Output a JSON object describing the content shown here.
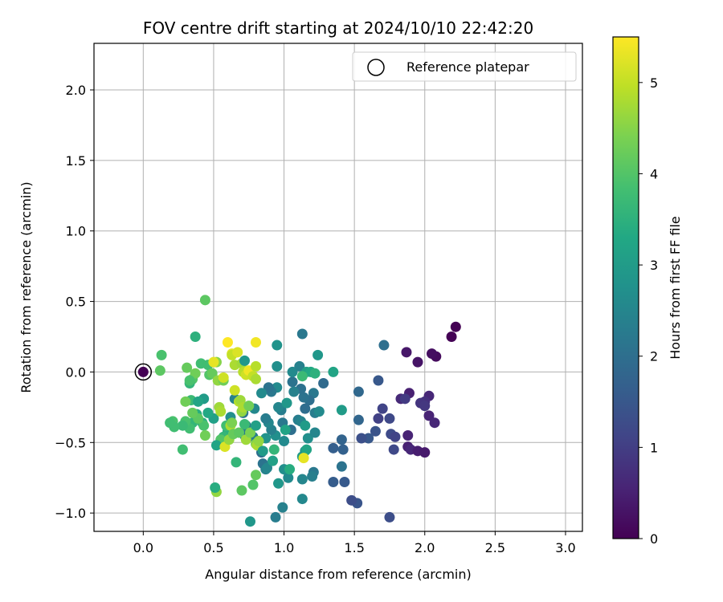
{
  "chart_data": {
    "type": "scatter",
    "title": "FOV centre drift starting at 2024/10/10 22:42:20",
    "xlabel": "Angular distance from reference (arcmin)",
    "ylabel": "Rotation from reference (arcmin)",
    "xlim": [
      -0.35,
      3.12
    ],
    "ylim": [
      -1.13,
      2.33
    ],
    "xticks": [
      0.0,
      0.5,
      1.0,
      1.5,
      2.0,
      2.5,
      3.0
    ],
    "xtick_labels": [
      "0.0",
      "0.5",
      "1.0",
      "1.5",
      "2.0",
      "2.5",
      "3.0"
    ],
    "yticks": [
      -1.0,
      -0.5,
      0.0,
      0.5,
      1.0,
      1.5,
      2.0
    ],
    "ytick_labels": [
      "−1.0",
      "−0.5",
      "0.0",
      "0.5",
      "1.0",
      "1.5",
      "2.0"
    ],
    "grid": true,
    "legend": {
      "placement": "upper-right",
      "entries": [
        "Reference platepar"
      ]
    },
    "colorbar": {
      "label": "Hours from first FF file",
      "range": [
        0,
        5.5
      ],
      "ticks": [
        0,
        1,
        2,
        3,
        4,
        5
      ],
      "tick_labels": [
        "0",
        "1",
        "2",
        "3",
        "4",
        "5"
      ],
      "colormap": "viridis",
      "colormap_stops": [
        "#440154",
        "#482475",
        "#414487",
        "#355f8d",
        "#2a788e",
        "#21918c",
        "#22a884",
        "#44bf70",
        "#7ad151",
        "#bddf26",
        "#fde725"
      ]
    },
    "reference_point": {
      "x": 0.0,
      "y": 0.0,
      "hours": 0.0
    },
    "points": [
      [
        2.22,
        0.32,
        0.0
      ],
      [
        2.19,
        0.25,
        0.02
      ],
      [
        2.08,
        0.11,
        0.15
      ],
      [
        2.05,
        0.13,
        0.2
      ],
      [
        1.87,
        0.14,
        0.35
      ],
      [
        1.95,
        0.07,
        0.3
      ],
      [
        1.83,
        -0.19,
        0.65
      ],
      [
        1.89,
        -0.15,
        0.5
      ],
      [
        2.03,
        -0.17,
        0.6
      ],
      [
        2.0,
        -0.21,
        0.75
      ],
      [
        1.97,
        -0.22,
        0.85
      ],
      [
        2.0,
        -0.24,
        0.9
      ],
      [
        2.03,
        -0.31,
        0.55
      ],
      [
        2.07,
        -0.36,
        0.6
      ],
      [
        1.88,
        -0.45,
        0.55
      ],
      [
        1.88,
        -0.53,
        0.5
      ],
      [
        1.9,
        -0.55,
        0.6
      ],
      [
        1.95,
        -0.56,
        0.45
      ],
      [
        2.0,
        -0.57,
        0.4
      ],
      [
        1.86,
        -0.19,
        0.95
      ],
      [
        1.7,
        -0.26,
        1.1
      ],
      [
        1.75,
        -0.33,
        1.2
      ],
      [
        1.67,
        -0.33,
        1.05
      ],
      [
        1.76,
        -0.44,
        1.25
      ],
      [
        1.78,
        -0.55,
        1.2
      ],
      [
        1.79,
        -0.46,
        1.1
      ],
      [
        1.75,
        -1.03,
        1.3
      ],
      [
        1.65,
        -0.42,
        1.4
      ],
      [
        1.6,
        -0.47,
        1.5
      ],
      [
        1.55,
        -0.47,
        1.35
      ],
      [
        1.52,
        -0.93,
        1.45
      ],
      [
        1.48,
        -0.91,
        1.3
      ],
      [
        1.43,
        -0.78,
        1.55
      ],
      [
        1.35,
        -0.78,
        1.6
      ],
      [
        1.35,
        -0.54,
        1.65
      ],
      [
        1.42,
        -0.55,
        1.7
      ],
      [
        1.41,
        -0.48,
        1.75
      ],
      [
        1.53,
        -0.34,
        1.8
      ],
      [
        1.53,
        -0.14,
        1.85
      ],
      [
        1.67,
        -0.06,
        1.5
      ],
      [
        1.71,
        0.19,
        2.0
      ],
      [
        1.41,
        -0.67,
        2.1
      ],
      [
        1.21,
        -0.71,
        2.2
      ],
      [
        1.2,
        -0.74,
        2.35
      ],
      [
        1.13,
        -0.76,
        2.5
      ],
      [
        1.13,
        -0.9,
        2.55
      ],
      [
        1.03,
        -0.75,
        2.6
      ],
      [
        1.0,
        -0.69,
        2.7
      ],
      [
        0.99,
        -0.96,
        2.4
      ],
      [
        0.96,
        -0.79,
        2.9
      ],
      [
        0.94,
        -1.03,
        2.3
      ],
      [
        1.13,
        -0.6,
        3.0
      ],
      [
        1.15,
        -0.56,
        2.8
      ],
      [
        1.17,
        -0.47,
        2.7
      ],
      [
        1.22,
        -0.43,
        2.5
      ],
      [
        1.28,
        -0.08,
        1.9
      ],
      [
        1.22,
        -0.29,
        2.3
      ],
      [
        1.25,
        -0.28,
        2.6
      ],
      [
        1.21,
        -0.15,
        2.2
      ],
      [
        1.18,
        -0.2,
        2.0
      ],
      [
        1.14,
        -0.18,
        2.1
      ],
      [
        1.15,
        -0.26,
        1.95
      ],
      [
        1.12,
        -0.12,
        2.05
      ],
      [
        1.1,
        -0.34,
        2.3
      ],
      [
        1.12,
        -0.35,
        2.45
      ],
      [
        1.06,
        -0.07,
        2.1
      ],
      [
        1.07,
        -0.14,
        2.4
      ],
      [
        1.06,
        0.0,
        2.6
      ],
      [
        1.05,
        -0.41,
        2.0
      ],
      [
        0.99,
        -0.36,
        2.2
      ],
      [
        0.98,
        -0.27,
        2.3
      ],
      [
        0.96,
        -0.25,
        2.5
      ],
      [
        0.95,
        -0.11,
        2.6
      ],
      [
        0.95,
        0.04,
        2.7
      ],
      [
        0.95,
        0.19,
        2.8
      ],
      [
        1.13,
        0.27,
        2.2
      ],
      [
        1.11,
        0.04,
        2.4
      ],
      [
        1.16,
        0.0,
        3.1
      ],
      [
        1.19,
        0.0,
        3.3
      ],
      [
        1.22,
        -0.01,
        3.5
      ],
      [
        1.24,
        0.12,
        2.9
      ],
      [
        1.35,
        0.0,
        3.2
      ],
      [
        1.41,
        -0.27,
        3.0
      ],
      [
        1.02,
        -0.22,
        2.9
      ],
      [
        1.01,
        -0.41,
        3.2
      ],
      [
        1.0,
        -0.49,
        2.6
      ],
      [
        0.94,
        -0.45,
        2.7
      ],
      [
        0.91,
        -0.41,
        2.4
      ],
      [
        0.89,
        -0.36,
        2.5
      ],
      [
        0.87,
        -0.33,
        2.3
      ],
      [
        0.91,
        -0.14,
        2.2
      ],
      [
        0.89,
        -0.11,
        2.1
      ],
      [
        0.84,
        -0.15,
        2.6
      ],
      [
        0.79,
        -0.26,
        2.55
      ],
      [
        0.78,
        -0.46,
        2.3
      ],
      [
        0.87,
        -0.47,
        2.8
      ],
      [
        0.84,
        -0.57,
        2.0
      ],
      [
        0.85,
        -0.65,
        2.1
      ],
      [
        0.87,
        -0.69,
        2.4
      ],
      [
        0.88,
        -0.68,
        2.5
      ],
      [
        0.92,
        -0.63,
        3.1
      ],
      [
        0.93,
        -0.55,
        3.6
      ],
      [
        0.76,
        -1.06,
        2.9
      ],
      [
        0.65,
        -0.19,
        2.4
      ],
      [
        0.62,
        -0.32,
        2.7
      ],
      [
        0.71,
        -0.29,
        2.1
      ],
      [
        0.72,
        -0.45,
        2.2
      ],
      [
        0.73,
        -0.38,
        2.3
      ],
      [
        0.6,
        -0.42,
        3.5
      ],
      [
        0.59,
        -0.38,
        3.8
      ],
      [
        0.57,
        -0.46,
        3.6
      ],
      [
        0.55,
        -0.48,
        4.0
      ],
      [
        0.52,
        -0.52,
        3.2
      ],
      [
        0.5,
        -0.33,
        3.1
      ],
      [
        0.46,
        -0.29,
        3.3
      ],
      [
        0.43,
        -0.19,
        3.0
      ],
      [
        0.42,
        -0.36,
        3.5
      ],
      [
        0.38,
        -0.3,
        3.4
      ],
      [
        0.34,
        -0.2,
        3.7
      ],
      [
        0.35,
        -0.36,
        3.6
      ],
      [
        0.33,
        -0.4,
        3.8
      ],
      [
        0.3,
        -0.35,
        3.9
      ],
      [
        0.28,
        -0.38,
        3.7
      ],
      [
        0.28,
        -0.55,
        3.8
      ],
      [
        0.21,
        -0.35,
        3.9
      ],
      [
        0.22,
        -0.39,
        3.8
      ],
      [
        0.13,
        0.12,
        3.9
      ],
      [
        0.12,
        0.01,
        4.1
      ],
      [
        0.31,
        0.03,
        4.2
      ],
      [
        0.35,
        -0.05,
        4.0
      ],
      [
        0.37,
        -0.01,
        4.3
      ],
      [
        0.33,
        -0.08,
        3.6
      ],
      [
        0.39,
        -0.21,
        3.2
      ],
      [
        0.41,
        0.06,
        3.8
      ],
      [
        0.37,
        0.25,
        3.5
      ],
      [
        0.44,
        0.51,
        4.1
      ],
      [
        0.46,
        0.05,
        3.8
      ],
      [
        0.47,
        -0.02,
        4.0
      ],
      [
        0.49,
        -0.01,
        4.2
      ],
      [
        0.52,
        0.07,
        4.5
      ],
      [
        0.53,
        -0.06,
        4.6
      ],
      [
        0.54,
        -0.25,
        4.7
      ],
      [
        0.55,
        -0.28,
        4.8
      ],
      [
        0.57,
        -0.06,
        4.3
      ],
      [
        0.58,
        -0.53,
        5.2
      ],
      [
        0.61,
        -0.48,
        4.6
      ],
      [
        0.62,
        -0.38,
        4.8
      ],
      [
        0.63,
        -0.36,
        4.4
      ],
      [
        0.64,
        -0.44,
        4.2
      ],
      [
        0.66,
        -0.64,
        3.6
      ],
      [
        0.68,
        -0.43,
        4.1
      ],
      [
        0.68,
        -0.21,
        4.9
      ],
      [
        0.69,
        -0.2,
        4.7
      ],
      [
        0.7,
        -0.28,
        4.6
      ],
      [
        0.71,
        -0.25,
        4.8
      ],
      [
        0.72,
        -0.37,
        3.7
      ],
      [
        0.73,
        -0.48,
        4.7
      ],
      [
        0.75,
        -0.24,
        4.3
      ],
      [
        0.76,
        -0.43,
        4.4
      ],
      [
        0.78,
        -0.8,
        4.0
      ],
      [
        0.8,
        -0.73,
        4.2
      ],
      [
        0.8,
        -0.51,
        4.5
      ],
      [
        0.81,
        -0.52,
        4.8
      ],
      [
        0.82,
        -0.49,
        4.6
      ],
      [
        0.7,
        -0.84,
        4.1
      ],
      [
        0.52,
        -0.85,
        4.6
      ],
      [
        0.51,
        -0.82,
        3.4
      ],
      [
        0.63,
        0.13,
        5.3
      ],
      [
        0.6,
        0.21,
        5.5
      ],
      [
        0.63,
        0.12,
        5.0
      ],
      [
        0.67,
        0.14,
        5.2
      ],
      [
        0.65,
        0.05,
        4.8
      ],
      [
        0.7,
        0.06,
        4.7
      ],
      [
        0.71,
        0.0,
        4.9
      ],
      [
        0.73,
        -0.02,
        5.1
      ],
      [
        0.75,
        0.01,
        5.4
      ],
      [
        0.78,
        -0.03,
        5.0
      ],
      [
        0.8,
        -0.05,
        4.8
      ],
      [
        0.8,
        0.04,
        4.9
      ],
      [
        0.8,
        0.21,
        5.4
      ],
      [
        0.72,
        0.08,
        2.9
      ],
      [
        0.65,
        -0.13,
        5.1
      ],
      [
        0.57,
        -0.04,
        5.1
      ],
      [
        0.5,
        0.07,
        5.3
      ],
      [
        0.43,
        -0.38,
        3.9
      ],
      [
        0.44,
        -0.45,
        4.3
      ],
      [
        0.39,
        -0.33,
        4.1
      ],
      [
        0.35,
        -0.29,
        4.2
      ],
      [
        0.3,
        -0.21,
        4.3
      ],
      [
        0.33,
        -0.06,
        3.9
      ],
      [
        0.19,
        -0.36,
        3.8
      ],
      [
        1.13,
        -0.03,
        3.7
      ],
      [
        1.15,
        -0.38,
        3.0
      ],
      [
        1.16,
        -0.55,
        3.2
      ],
      [
        1.04,
        -0.69,
        3.4
      ],
      [
        1.14,
        -0.61,
        5.3
      ],
      [
        0.85,
        -0.56,
        3.0
      ],
      [
        0.8,
        -0.38,
        3.1
      ]
    ]
  }
}
